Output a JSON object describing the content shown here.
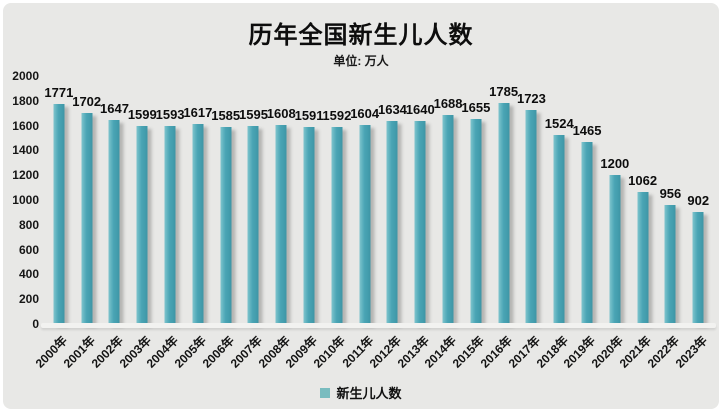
{
  "page": {
    "background": "#ffffff",
    "card_background": "#e8e8e6"
  },
  "chart_data": {
    "type": "bar",
    "title": "历年全国新生儿人数",
    "subtitle": "单位: 万人",
    "legend": "新生儿人数",
    "legend_position": "bottom",
    "categories": [
      "2000年",
      "2001年",
      "2002年",
      "2003年",
      "2004年",
      "2005年",
      "2006年",
      "2007年",
      "2008年",
      "2009年",
      "2010年",
      "2011年",
      "2012年",
      "2013年",
      "2014年",
      "2015年",
      "2016年",
      "2017年",
      "2018年",
      "2019年",
      "2020年",
      "2021年",
      "2022年",
      "2023年"
    ],
    "values": [
      1771,
      1702,
      1647,
      1599,
      1593,
      1617,
      1585,
      1595,
      1608,
      1591,
      1592,
      1604,
      1634,
      1640,
      1688,
      1655,
      1785,
      1723,
      1524,
      1465,
      1200,
      1062,
      956,
      902
    ],
    "xlabel": "",
    "ylabel": "",
    "ylim": [
      0,
      2000
    ],
    "yticks": [
      0,
      200,
      400,
      600,
      800,
      1000,
      1200,
      1400,
      1600,
      1800,
      2000
    ],
    "grid": false,
    "data_labels": true,
    "x_label_rotation_deg": -45,
    "bar_color": "#47a3b3",
    "bar_gradient": [
      "#7ec4cd",
      "#4aa5b5",
      "#3e96a6"
    ],
    "bar_shadow_color": "#767674",
    "legend_swatch_color": "#79bcbf",
    "text_color": "#0d0d0d"
  }
}
